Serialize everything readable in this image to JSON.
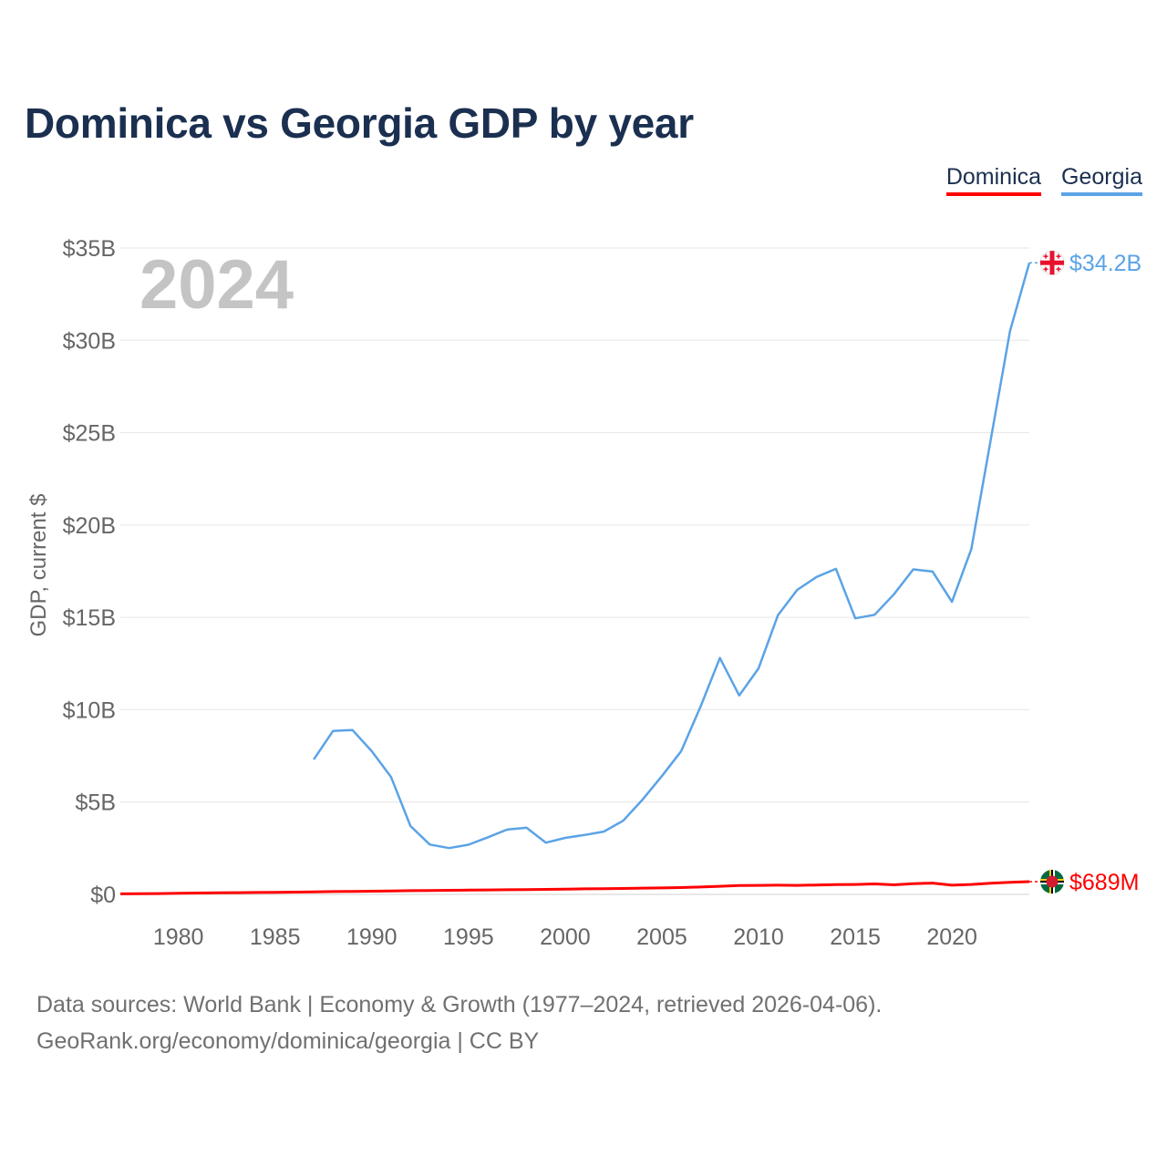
{
  "title": "Dominica vs Georgia GDP by year",
  "legend": [
    {
      "label": "Dominica",
      "color": "#ff0000"
    },
    {
      "label": "Georgia",
      "color": "#5ba3e6"
    }
  ],
  "source": {
    "line1": "Data sources: World Bank | Economy & Growth (1977–2024, retrieved 2026-04-06).",
    "line2": "GeoRank.org/economy/dominica/georgia | CC BY"
  },
  "chart_data": {
    "type": "line",
    "title": "Dominica vs Georgia GDP by year",
    "ylabel": "GDP, current $",
    "xlabel": "",
    "year_label": "2024",
    "xlim": [
      1977,
      2024
    ],
    "ylim": [
      0,
      35000000000
    ],
    "grid": true,
    "legend_position": "top-right",
    "x_ticks": [
      1980,
      1985,
      1990,
      1995,
      2000,
      2005,
      2010,
      2015,
      2020
    ],
    "x_tick_labels": [
      "1980",
      "1985",
      "1990",
      "1995",
      "2000",
      "2005",
      "2010",
      "2015",
      "2020"
    ],
    "y_ticks": [
      0,
      5000000000,
      10000000000,
      15000000000,
      20000000000,
      25000000000,
      30000000000,
      35000000000
    ],
    "y_tick_labels": [
      "$0",
      "$5B",
      "$10B",
      "$15B",
      "$20B",
      "$25B",
      "$30B",
      "$35B"
    ],
    "series": [
      {
        "name": "Dominica",
        "color": "#ff0000",
        "end_label": "$689M",
        "flag_icon": "dominica-flag-icon",
        "x": [
          1977,
          1978,
          1979,
          1980,
          1981,
          1982,
          1983,
          1984,
          1985,
          1986,
          1987,
          1988,
          1989,
          1990,
          1991,
          1992,
          1993,
          1994,
          1995,
          1996,
          1997,
          1998,
          1999,
          2000,
          2001,
          2002,
          2003,
          2004,
          2005,
          2006,
          2007,
          2008,
          2009,
          2010,
          2011,
          2012,
          2013,
          2014,
          2015,
          2016,
          2017,
          2018,
          2019,
          2020,
          2021,
          2022,
          2023,
          2024
        ],
        "values": [
          30000000,
          35000000,
          45000000,
          60000000,
          75000000,
          85000000,
          95000000,
          105000000,
          115000000,
          125000000,
          140000000,
          155000000,
          165000000,
          175000000,
          190000000,
          200000000,
          210000000,
          220000000,
          230000000,
          240000000,
          250000000,
          260000000,
          270000000,
          280000000,
          300000000,
          310000000,
          320000000,
          340000000,
          350000000,
          370000000,
          400000000,
          440000000,
          480000000,
          490000000,
          500000000,
          490000000,
          510000000,
          530000000,
          540000000,
          570000000,
          520000000,
          580000000,
          610000000,
          500000000,
          540000000,
          600000000,
          650000000,
          689000000
        ]
      },
      {
        "name": "Georgia",
        "color": "#5ba3e6",
        "end_label": "$34.2B",
        "flag_icon": "georgia-flag-icon",
        "x": [
          1987,
          1988,
          1989,
          1990,
          1991,
          1992,
          1993,
          1994,
          1995,
          1996,
          1997,
          1998,
          1999,
          2000,
          2001,
          2002,
          2003,
          2004,
          2005,
          2006,
          2007,
          2008,
          2009,
          2010,
          2011,
          2012,
          2013,
          2014,
          2015,
          2016,
          2017,
          2018,
          2019,
          2020,
          2021,
          2022,
          2023,
          2024
        ],
        "values": [
          7300000000,
          8850000000,
          8900000000,
          7750000000,
          6350000000,
          3700000000,
          2700000000,
          2510000000,
          2690000000,
          3090000000,
          3510000000,
          3610000000,
          2800000000,
          3060000000,
          3220000000,
          3400000000,
          3990000000,
          5130000000,
          6410000000,
          7760000000,
          10170000000,
          12800000000,
          10770000000,
          12240000000,
          15110000000,
          16490000000,
          17190000000,
          17630000000,
          14950000000,
          15140000000,
          16250000000,
          17600000000,
          17480000000,
          15840000000,
          18700000000,
          24600000000,
          30500000000,
          34200000000
        ]
      }
    ]
  }
}
